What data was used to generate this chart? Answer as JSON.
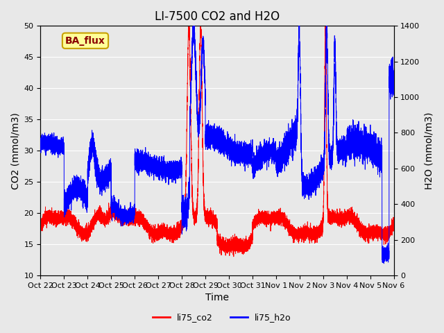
{
  "title": "LI-7500 CO2 and H2O",
  "xlabel": "Time",
  "ylabel_left": "CO2 (mmol/m3)",
  "ylabel_right": "H2O (mmol/m3)",
  "ylim_left": [
    10,
    50
  ],
  "ylim_right": [
    0,
    1400
  ],
  "yticks_left": [
    10,
    15,
    20,
    25,
    30,
    35,
    40,
    45,
    50
  ],
  "yticks_right": [
    0,
    200,
    400,
    600,
    800,
    1000,
    1200,
    1400
  ],
  "xtick_labels": [
    "Oct 22",
    "Oct 23",
    "Oct 24",
    "Oct 25",
    "Oct 26",
    "Oct 27",
    "Oct 28",
    "Oct 29",
    "Oct 30",
    "Oct 31",
    "Nov 1",
    "Nov 2",
    "Nov 3",
    "Nov 4",
    "Nov 5",
    "Nov 6"
  ],
  "legend_labels": [
    "li75_co2",
    "li75_h2o"
  ],
  "legend_colors": [
    "red",
    "blue"
  ],
  "co2_color": "red",
  "h2o_color": "blue",
  "bg_color": "#e8e8e8",
  "plot_bg_color": "#e8e8e8",
  "annotation_text": "BA_flux",
  "annotation_bg": "#ffff99",
  "annotation_border": "#c8a000",
  "annotation_text_color": "#8b0000",
  "title_fontsize": 12,
  "axis_label_fontsize": 10,
  "tick_fontsize": 8,
  "legend_fontsize": 9,
  "n_points": 15000
}
